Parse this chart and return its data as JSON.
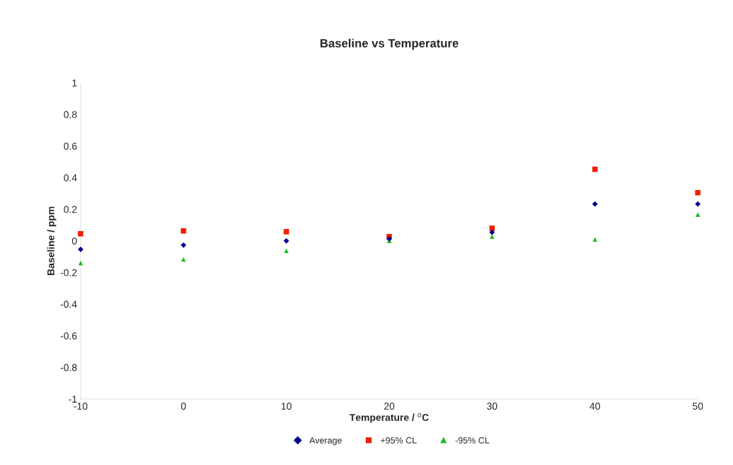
{
  "chart_data": {
    "type": "scatter",
    "title": "Baseline vs Temperature",
    "xlabel": "Temperature / $^{o}$C",
    "ylabel": "Baseline / ppm",
    "x": [
      -10,
      0,
      10,
      20,
      30,
      40,
      50
    ],
    "series": [
      {
        "name": "Average",
        "color": "#00008b",
        "marker": "diamond",
        "values": [
          -0.054,
          -0.027,
          0.0,
          0.013,
          0.054,
          0.233,
          0.233
        ]
      },
      {
        "name": "+95% CL",
        "color": "#ee2200",
        "marker": "square",
        "values": [
          0.045,
          0.063,
          0.058,
          0.027,
          0.08,
          0.453,
          0.305
        ]
      },
      {
        "name": "-95% CL",
        "color": "#22bb22",
        "marker": "triangle",
        "values": [
          -0.14,
          -0.117,
          -0.063,
          0.0,
          0.027,
          0.009,
          0.166
        ]
      }
    ],
    "xlim": [
      -10,
      50
    ],
    "xticks": [
      -10,
      0,
      10,
      20,
      30,
      40,
      50
    ],
    "ylim": [
      -1,
      1
    ],
    "yticks": [
      -1,
      -0.8,
      -0.6,
      -0.4,
      -0.2,
      0,
      0.2,
      0.4,
      0.6,
      0.8,
      1
    ],
    "grid": false,
    "legend": "bottom"
  }
}
